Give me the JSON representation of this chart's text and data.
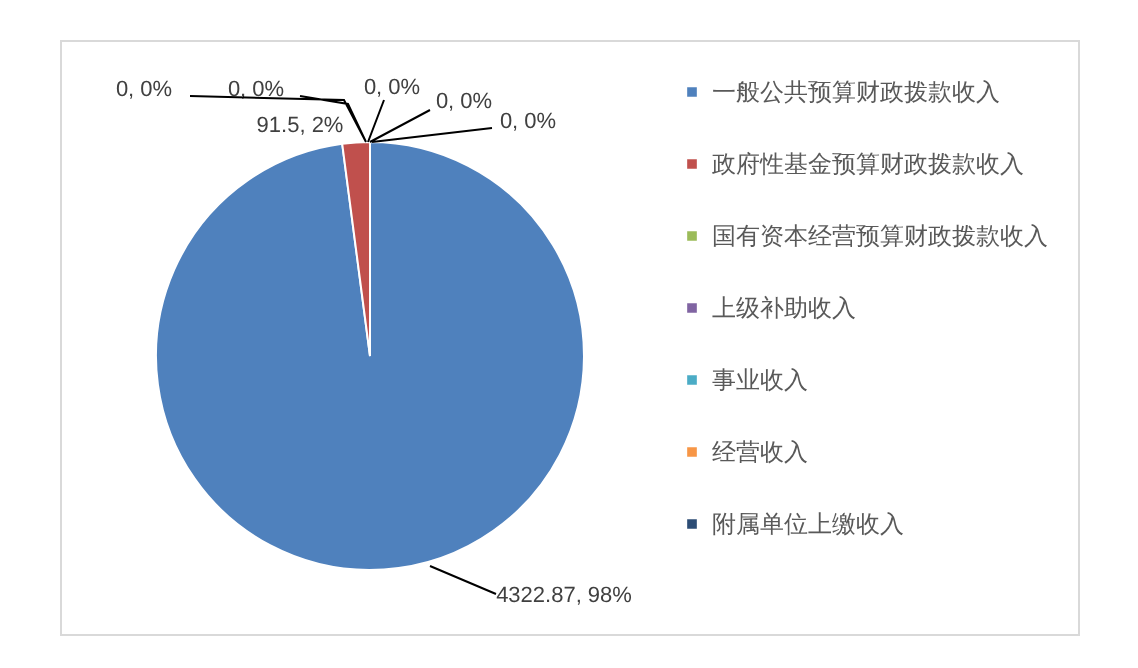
{
  "chart_data": {
    "type": "pie",
    "categories": [
      "一般公共预算财政拨款收入",
      "政府性基金预算财政拨款收入",
      "国有资本经营预算财政拨款收入",
      "上级补助收入",
      "事业收入",
      "经营收入",
      "附属单位上缴收入"
    ],
    "values": [
      4322.87,
      91.5,
      0,
      0,
      0,
      0,
      0
    ],
    "colors": [
      "#4f81bd",
      "#c0504d",
      "#9bbb59",
      "#8064a2",
      "#4bacc6",
      "#f79646",
      "#2c4d75"
    ],
    "value_labels": [
      "4322.87, 98%",
      "91.5, 2%",
      "0, 0%",
      "0, 0%",
      "0, 0%",
      "0, 0%",
      "0, 0%"
    ],
    "legend": "right"
  }
}
